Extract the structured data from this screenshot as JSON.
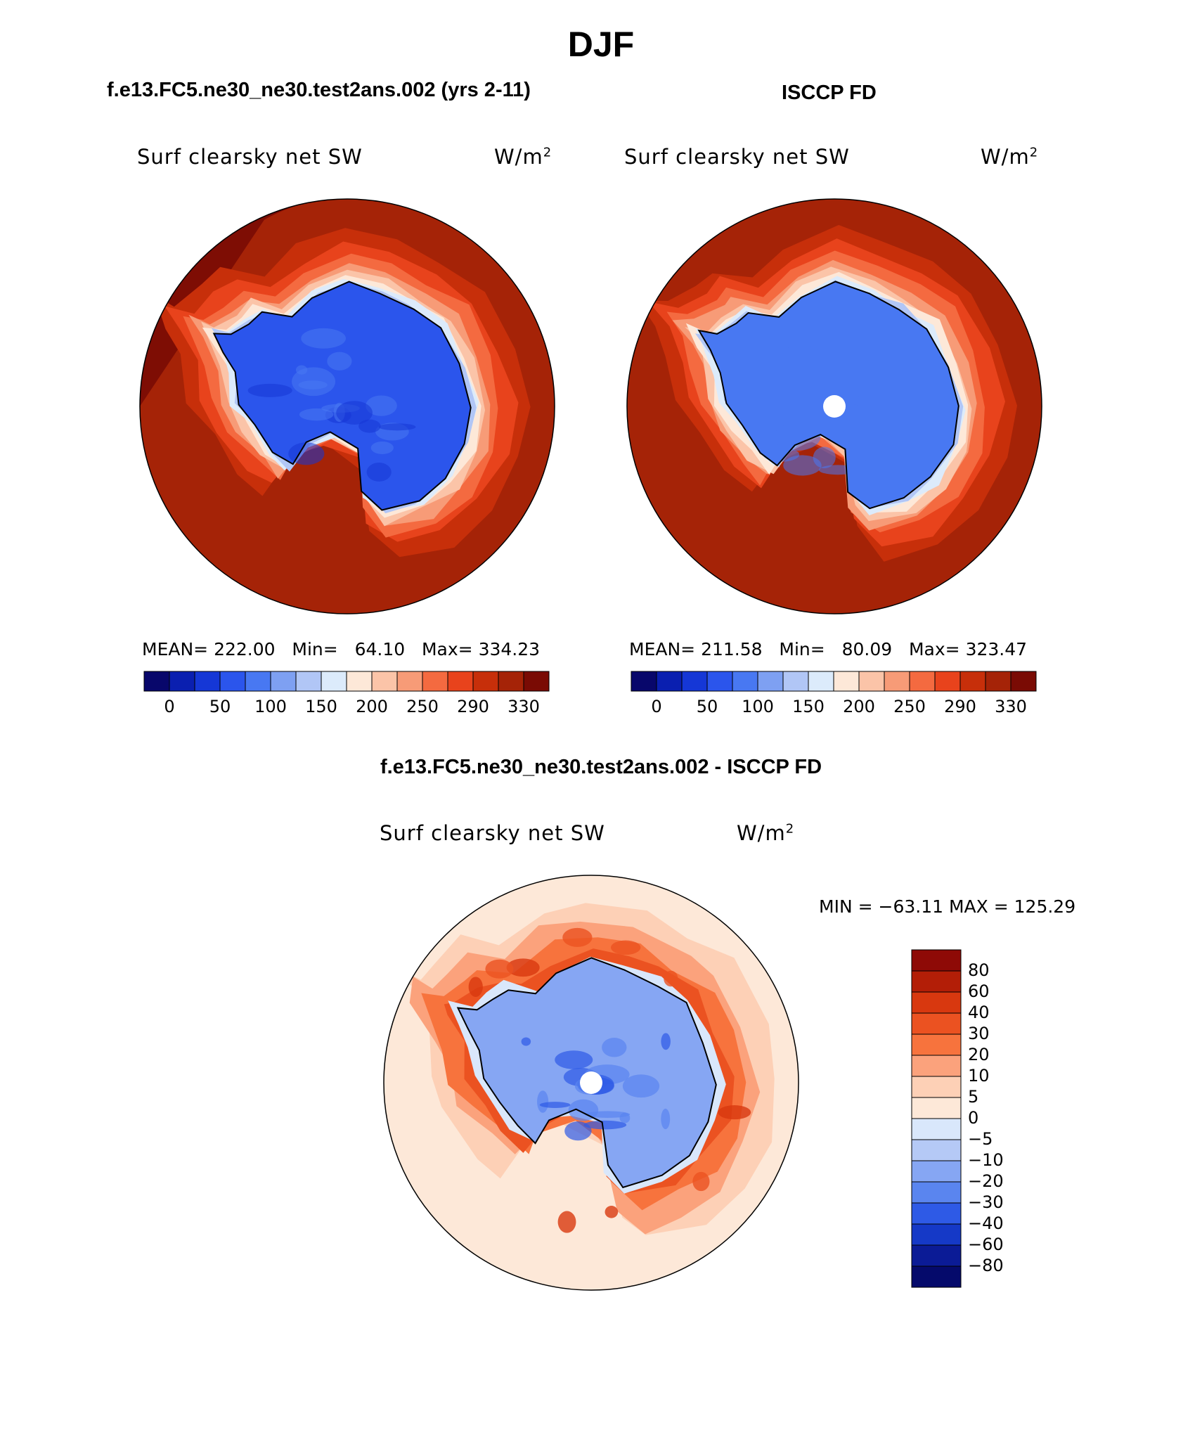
{
  "figure": {
    "title": "DJF",
    "left_subtitle": "f.e13.FC5.ne30_ne30.test2ans.002 (yrs 2-11)",
    "right_subtitle": "ISCCP FD",
    "diff_subtitle": "f.e13.FC5.ne30_ne30.test2ans.002 - ISCCP FD"
  },
  "chart_data": [
    {
      "type": "heatmap",
      "projection": "south-polar-stereographic",
      "title": "Surf clearsky net SW",
      "units": "W/m",
      "units_sup": "2",
      "stats": {
        "mean_label": "MEAN=",
        "mean": "222.00",
        "min_label": "Min=",
        "min": "64.10",
        "max_label": "Max=",
        "max": "334.23"
      },
      "colorbar": {
        "orientation": "horizontal",
        "levels": [
          0,
          50,
          100,
          150,
          200,
          250,
          290,
          330
        ],
        "tick_labels": [
          "0",
          "50",
          "100",
          "150",
          "200",
          "250",
          "290",
          "330"
        ],
        "colors": [
          "#08076b",
          "#0a1fb0",
          "#1537d6",
          "#2b55ec",
          "#4878f2",
          "#7ea0f2",
          "#b1c6f6",
          "#dcebfb",
          "#fde8d8",
          "#fbc4a8",
          "#f79b77",
          "#f46a40",
          "#e8431c",
          "#c72f0a",
          "#a52307",
          "#7a0b04"
        ]
      },
      "field": {
        "ice_value": 60,
        "ocean_edge_value": 320,
        "ocean_value": 305
      }
    },
    {
      "type": "heatmap",
      "projection": "south-polar-stereographic",
      "title": "Surf clearsky net SW",
      "units": "W/m",
      "units_sup": "2",
      "stats": {
        "mean_label": "MEAN=",
        "mean": "211.58",
        "min_label": "Min=",
        "min": "80.09",
        "max_label": "Max=",
        "max": "323.47"
      },
      "colorbar": {
        "orientation": "horizontal",
        "levels": [
          0,
          50,
          100,
          150,
          200,
          250,
          290,
          330
        ],
        "tick_labels": [
          "0",
          "50",
          "100",
          "150",
          "200",
          "250",
          "290",
          "330"
        ],
        "colors": [
          "#08076b",
          "#0a1fb0",
          "#1537d6",
          "#2b55ec",
          "#4878f2",
          "#7ea0f2",
          "#b1c6f6",
          "#dcebfb",
          "#fde8d8",
          "#fbc4a8",
          "#f79b77",
          "#f46a40",
          "#e8431c",
          "#c72f0a",
          "#a52307",
          "#7a0b04"
        ]
      },
      "field": {
        "ice_value": 85,
        "ocean_edge_value": 310,
        "ocean_value": 305,
        "polar_hole": true
      }
    },
    {
      "type": "heatmap",
      "projection": "south-polar-stereographic",
      "title": "Surf clearsky net SW",
      "units": "W/m",
      "units_sup": "2",
      "stats": {
        "min_label": "MIN =",
        "min": "−63.11",
        "max_label": "MAX =",
        "max": "125.29"
      },
      "colorbar": {
        "orientation": "vertical",
        "levels": [
          80,
          60,
          40,
          30,
          20,
          10,
          5,
          0,
          -5,
          -10,
          -20,
          -30,
          -40,
          -60,
          -80
        ],
        "tick_labels": [
          "80",
          "60",
          "40",
          "30",
          "20",
          "10",
          "5",
          "0",
          "−5",
          "−10",
          "−20",
          "−30",
          "−40",
          "−60",
          "−80"
        ],
        "colors": [
          "#8e0a06",
          "#b31e07",
          "#d8380f",
          "#eb5221",
          "#f7733d",
          "#fba27c",
          "#fdd0b6",
          "#fde8d8",
          "#d9e7fb",
          "#b5c9f6",
          "#86a6f3",
          "#5a85ef",
          "#2e5ae6",
          "#1539c7",
          "#0b1b96",
          "#050a6b"
        ]
      },
      "field": {
        "polar_hole": true
      }
    }
  ]
}
